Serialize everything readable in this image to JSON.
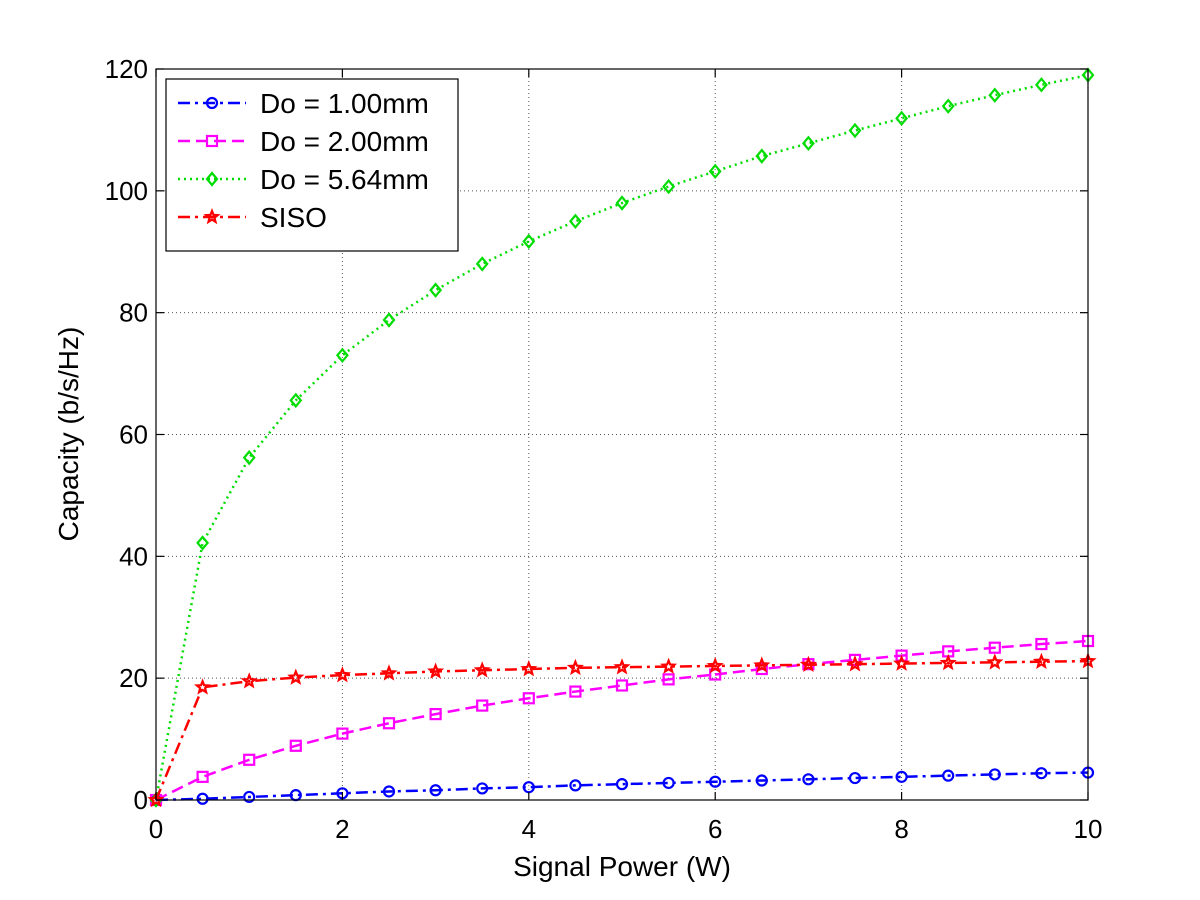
{
  "chart_data": {
    "type": "line",
    "title": "",
    "xlabel": "Signal Power (W)",
    "ylabel": "Capacity (b/s/Hz)",
    "xlim": [
      0,
      10
    ],
    "ylim": [
      0,
      120
    ],
    "xticks": [
      0,
      2,
      4,
      6,
      8,
      10
    ],
    "yticks": [
      0,
      20,
      40,
      60,
      80,
      100,
      120
    ],
    "grid": true,
    "legend_position": "top-left",
    "x": [
      0,
      0.5,
      1,
      1.5,
      2,
      2.5,
      3,
      3.5,
      4,
      4.5,
      5,
      5.5,
      6,
      6.5,
      7,
      7.5,
      8,
      8.5,
      9,
      9.5,
      10
    ],
    "series": [
      {
        "name": "Do = 1.00mm",
        "color": "#0000ff",
        "line_style": "dashdot",
        "marker": "circle",
        "values": [
          0,
          0.2,
          0.5,
          0.8,
          1.1,
          1.4,
          1.6,
          1.9,
          2.1,
          2.4,
          2.6,
          2.8,
          3.0,
          3.2,
          3.4,
          3.6,
          3.8,
          4.0,
          4.2,
          4.4,
          4.5
        ]
      },
      {
        "name": "Do = 2.00mm",
        "color": "#ff00ff",
        "line_style": "dashed",
        "marker": "square",
        "values": [
          0,
          3.8,
          6.6,
          8.9,
          10.9,
          12.6,
          14.1,
          15.5,
          16.7,
          17.8,
          18.8,
          19.8,
          20.6,
          21.5,
          22.3,
          23.0,
          23.7,
          24.4,
          25.0,
          25.6,
          26.1
        ]
      },
      {
        "name": "Do = 5.64mm",
        "color": "#00dd00",
        "line_style": "dotted",
        "marker": "diamond",
        "values": [
          0,
          42.2,
          56.2,
          65.6,
          73.0,
          78.8,
          83.7,
          88.0,
          91.7,
          95.0,
          98.0,
          100.7,
          103.2,
          105.7,
          107.8,
          109.9,
          111.9,
          113.9,
          115.7,
          117.4,
          119.0
        ]
      },
      {
        "name": "SISO",
        "color": "#ff0000",
        "line_style": "dashdot",
        "marker": "star",
        "values": [
          0,
          18.5,
          19.5,
          20.1,
          20.5,
          20.8,
          21.1,
          21.3,
          21.5,
          21.7,
          21.8,
          21.9,
          22.0,
          22.1,
          22.2,
          22.3,
          22.4,
          22.5,
          22.6,
          22.7,
          22.8
        ]
      }
    ]
  }
}
